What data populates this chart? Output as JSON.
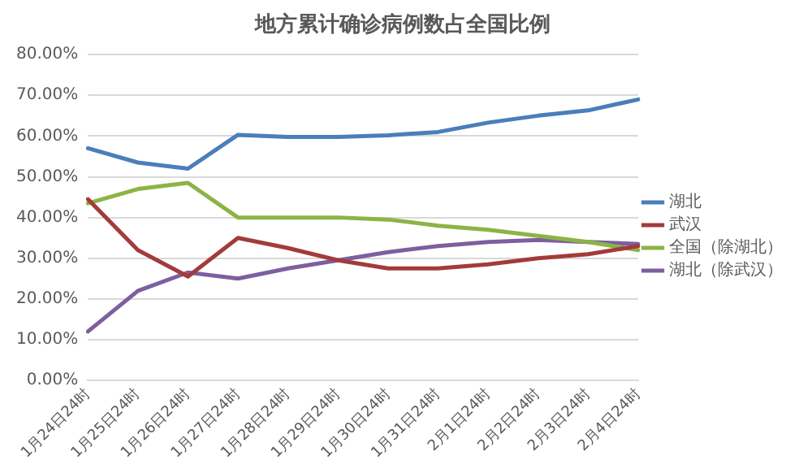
{
  "chart_data": {
    "type": "line",
    "title": "地方累计确诊病例数占全国比例",
    "categories": [
      "1月24日24时",
      "1月25日24时",
      "1月26日24时",
      "1月27日24时",
      "1月28日24时",
      "1月29日24时",
      "1月30日24时",
      "1月31日24时",
      "2月1日24时",
      "2月2日24时",
      "2月3日24时",
      "2月4日24时"
    ],
    "series": [
      {
        "name": "湖北",
        "color": "#4a7ebb",
        "values": [
          57,
          53.5,
          52,
          60.3,
          59.8,
          59.8,
          60.2,
          61,
          63.3,
          65,
          66.3,
          69
        ]
      },
      {
        "name": "武汉",
        "color": "#a33b3b",
        "values": [
          44.5,
          32,
          25.5,
          35,
          32.5,
          29.5,
          27.5,
          27.5,
          28.5,
          30,
          31,
          33
        ]
      },
      {
        "name": "全国（除湖北）",
        "color": "#8db345",
        "values": [
          43.5,
          47,
          48.5,
          40,
          40,
          40,
          39.5,
          38,
          37,
          35.5,
          34,
          32
        ]
      },
      {
        "name": "湖北（除武汉）",
        "color": "#7d5fa0",
        "values": [
          12,
          22,
          26.5,
          25,
          27.5,
          29.5,
          31.5,
          33,
          34,
          34.5,
          34,
          33.5
        ]
      }
    ],
    "ylim": [
      0,
      80
    ],
    "yticks": [
      {
        "value": 0,
        "label": "0.00%"
      },
      {
        "value": 10,
        "label": "10.00%"
      },
      {
        "value": 20,
        "label": "20.00%"
      },
      {
        "value": 30,
        "label": "30.00%"
      },
      {
        "value": 40,
        "label": "40.00%"
      },
      {
        "value": 50,
        "label": "50.00%"
      },
      {
        "value": 60,
        "label": "60.00%"
      },
      {
        "value": 70,
        "label": "70.00%"
      },
      {
        "value": 80,
        "label": "80.00%"
      }
    ],
    "grid": "y",
    "legend": "right",
    "marker": "none",
    "line_style": "solid"
  }
}
